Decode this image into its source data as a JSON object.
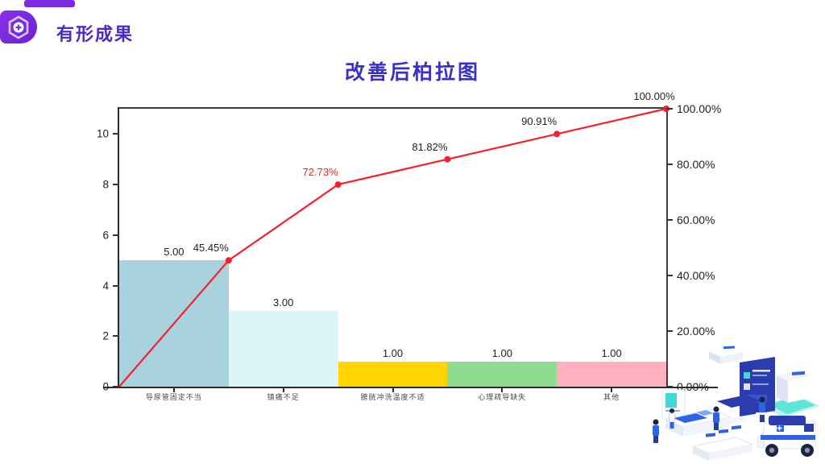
{
  "header": {
    "title": "有形成果",
    "logo_icon": "hexagon-plus-icon"
  },
  "chart_title": "改善后柏拉图",
  "chart_data": {
    "type": "bar",
    "subtype": "pareto (bar + cumulative line)",
    "title": "改善后柏拉图",
    "categories": [
      "导尿管固定不当",
      "镇痛不足",
      "膀胱冲洗温度不适",
      "心理疏导缺失",
      "其他"
    ],
    "series": [
      {
        "name": "frequency-bars",
        "chart_type": "bar",
        "values": [
          5,
          3,
          1,
          1,
          1
        ],
        "data_labels": [
          "5.00",
          "3.00",
          "1.00",
          "1.00",
          "1.00"
        ],
        "bar_colors": [
          "#a9d2df",
          "#dcf5f8",
          "#ffd400",
          "#8fdb90",
          "#ffb0be"
        ]
      },
      {
        "name": "cumulative-percent-line",
        "chart_type": "line",
        "values_pct": [
          45.45,
          72.73,
          81.82,
          90.91,
          100.0
        ],
        "data_labels": [
          "45.45%",
          "72.73%",
          "81.82%",
          "90.91%",
          "100.00%"
        ],
        "label_colors": [
          "#222222",
          "#ff1f1f",
          "#222222",
          "#222222",
          "#222222"
        ],
        "line_color": "#f5222d",
        "marker": "circle",
        "starts_at_origin": true
      }
    ],
    "left_axis": {
      "ticks": [
        "0",
        "2",
        "4",
        "6",
        "8",
        "10"
      ],
      "tick_values": [
        0,
        2,
        4,
        6,
        8,
        10
      ],
      "max": 11
    },
    "right_axis": {
      "ticks": [
        "0.00%",
        "20.00%",
        "40.00%",
        "60.00%",
        "80.00%",
        "100.00%"
      ],
      "tick_values": [
        0,
        20,
        40,
        60,
        80,
        100
      ],
      "max": 100
    },
    "grid": false,
    "legend": "none"
  },
  "illustration": {
    "name": "isometric-medical-scene",
    "colors": {
      "navy": "#2b3cae",
      "blue": "#2e63e8",
      "teal": "#3fd9cf",
      "light": "#e9edf9",
      "dark": "#1c2340"
    }
  }
}
